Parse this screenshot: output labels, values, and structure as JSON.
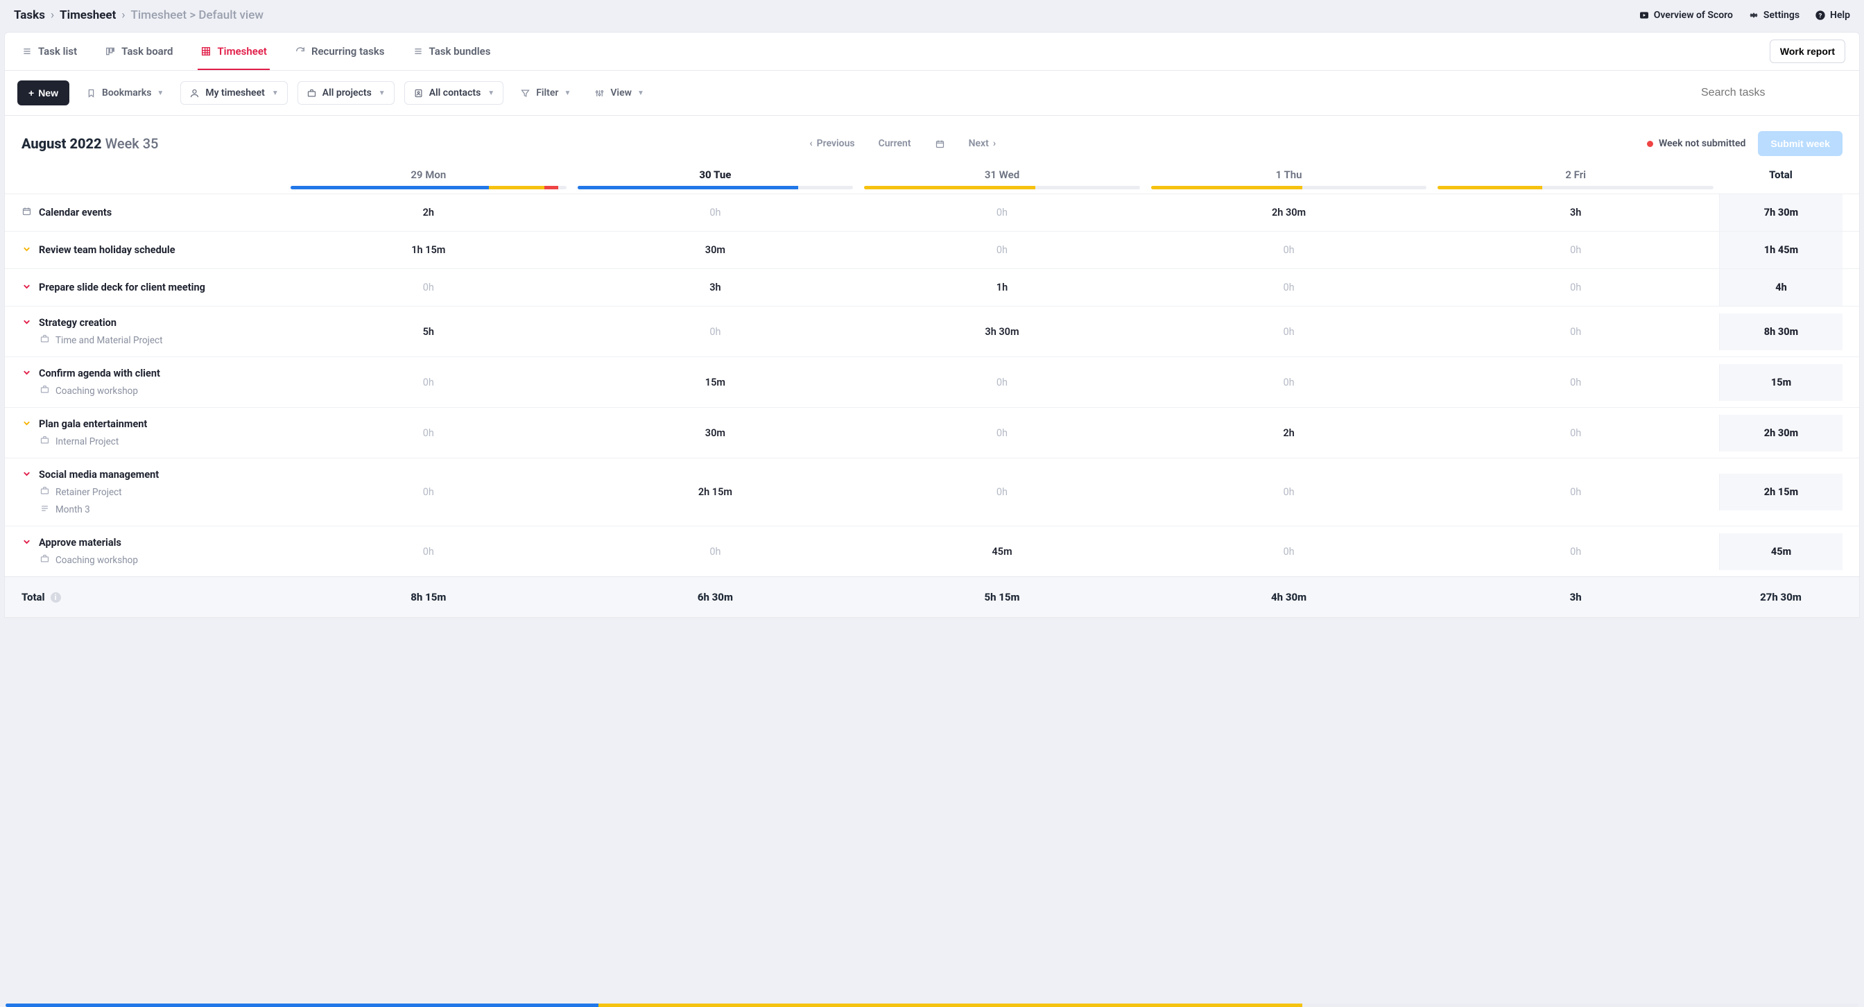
{
  "breadcrumb": {
    "root": "Tasks",
    "section": "Timesheet",
    "trail": "Timesheet > Default view"
  },
  "top_actions": {
    "overview": "Overview of Scoro",
    "settings": "Settings",
    "help": "Help"
  },
  "tabs": {
    "list": "Task list",
    "board": "Task board",
    "timesheet": "Timesheet",
    "recurring": "Recurring tasks",
    "bundles": "Task bundles"
  },
  "work_report": "Work report",
  "filters": {
    "new": "New",
    "bookmarks": "Bookmarks",
    "mine": "My timesheet",
    "projects": "All projects",
    "contacts": "All contacts",
    "filter": "Filter",
    "view": "View",
    "search_placeholder": "Search tasks"
  },
  "period": {
    "month": "August 2022",
    "week": "Week 35",
    "previous": "Previous",
    "current": "Current",
    "next": "Next",
    "status": "Week not submitted",
    "submit": "Submit week"
  },
  "colors": {
    "blue": "#2177e8",
    "yellow": "#f6c210",
    "red": "#ef4444",
    "track": "#ebedf2"
  },
  "columns": {
    "list": [
      "29 Mon",
      "30 Tue",
      "31 Wed",
      "1 Thu",
      "2 Fri"
    ],
    "today_index": 1,
    "total": "Total",
    "bars": [
      [
        {
          "c": "blue",
          "w": 72
        },
        {
          "c": "yellow",
          "w": 20
        },
        {
          "c": "red",
          "w": 5
        }
      ],
      [
        {
          "c": "blue",
          "w": 80
        }
      ],
      [
        {
          "c": "yellow",
          "w": 62
        }
      ],
      [
        {
          "c": "yellow",
          "w": 55
        }
      ],
      [
        {
          "c": "yellow",
          "w": 38
        }
      ]
    ],
    "total_bar": [
      {
        "c": "blue",
        "w": 32
      },
      {
        "c": "yellow",
        "w": 38
      }
    ]
  },
  "rows": [
    {
      "icon": "calendar",
      "title": "Calendar events",
      "subs": [],
      "cells": [
        "2h",
        "0h",
        "0h",
        "2h 30m",
        "3h"
      ],
      "total": "7h 30m",
      "has": [
        1,
        0,
        0,
        1,
        1
      ]
    },
    {
      "icon": "chev-yellow",
      "title": "Review team holiday schedule",
      "subs": [],
      "cells": [
        "1h 15m",
        "30m",
        "0h",
        "0h",
        "0h"
      ],
      "total": "1h 45m",
      "has": [
        1,
        1,
        0,
        0,
        0
      ]
    },
    {
      "icon": "chev-red",
      "title": "Prepare slide deck for client meeting",
      "subs": [],
      "cells": [
        "0h",
        "3h",
        "1h",
        "0h",
        "0h"
      ],
      "total": "4h",
      "has": [
        0,
        1,
        1,
        0,
        0
      ]
    },
    {
      "icon": "chev-red",
      "title": "Strategy creation",
      "subs": [
        {
          "icon": "briefcase",
          "label": "Time and Material Project"
        }
      ],
      "cells": [
        "5h",
        "0h",
        "3h 30m",
        "0h",
        "0h"
      ],
      "total": "8h 30m",
      "has": [
        1,
        0,
        1,
        0,
        0
      ]
    },
    {
      "icon": "chev-red",
      "title": "Confirm agenda with client",
      "subs": [
        {
          "icon": "briefcase",
          "label": "Coaching workshop"
        }
      ],
      "cells": [
        "0h",
        "15m",
        "0h",
        "0h",
        "0h"
      ],
      "total": "15m",
      "has": [
        0,
        1,
        0,
        0,
        0
      ]
    },
    {
      "icon": "chev-yellow",
      "title": "Plan gala entertainment",
      "subs": [
        {
          "icon": "briefcase",
          "label": "Internal Project"
        }
      ],
      "cells": [
        "0h",
        "30m",
        "0h",
        "2h",
        "0h"
      ],
      "total": "2h 30m",
      "has": [
        0,
        1,
        0,
        1,
        0
      ]
    },
    {
      "icon": "chev-red",
      "title": "Social media management",
      "subs": [
        {
          "icon": "briefcase",
          "label": "Retainer Project"
        },
        {
          "icon": "phase",
          "label": "Month 3"
        }
      ],
      "cells": [
        "0h",
        "2h 15m",
        "0h",
        "0h",
        "0h"
      ],
      "total": "2h 15m",
      "has": [
        0,
        1,
        0,
        0,
        0
      ]
    },
    {
      "icon": "chev-red",
      "title": "Approve materials",
      "subs": [
        {
          "icon": "briefcase",
          "label": "Coaching workshop"
        }
      ],
      "cells": [
        "0h",
        "0h",
        "45m",
        "0h",
        "0h"
      ],
      "total": "45m",
      "has": [
        0,
        0,
        1,
        0,
        0
      ]
    }
  ],
  "totals": {
    "label": "Total",
    "cells": [
      "8h 15m",
      "6h 30m",
      "5h 15m",
      "4h 30m",
      "3h"
    ],
    "total": "27h 30m"
  }
}
